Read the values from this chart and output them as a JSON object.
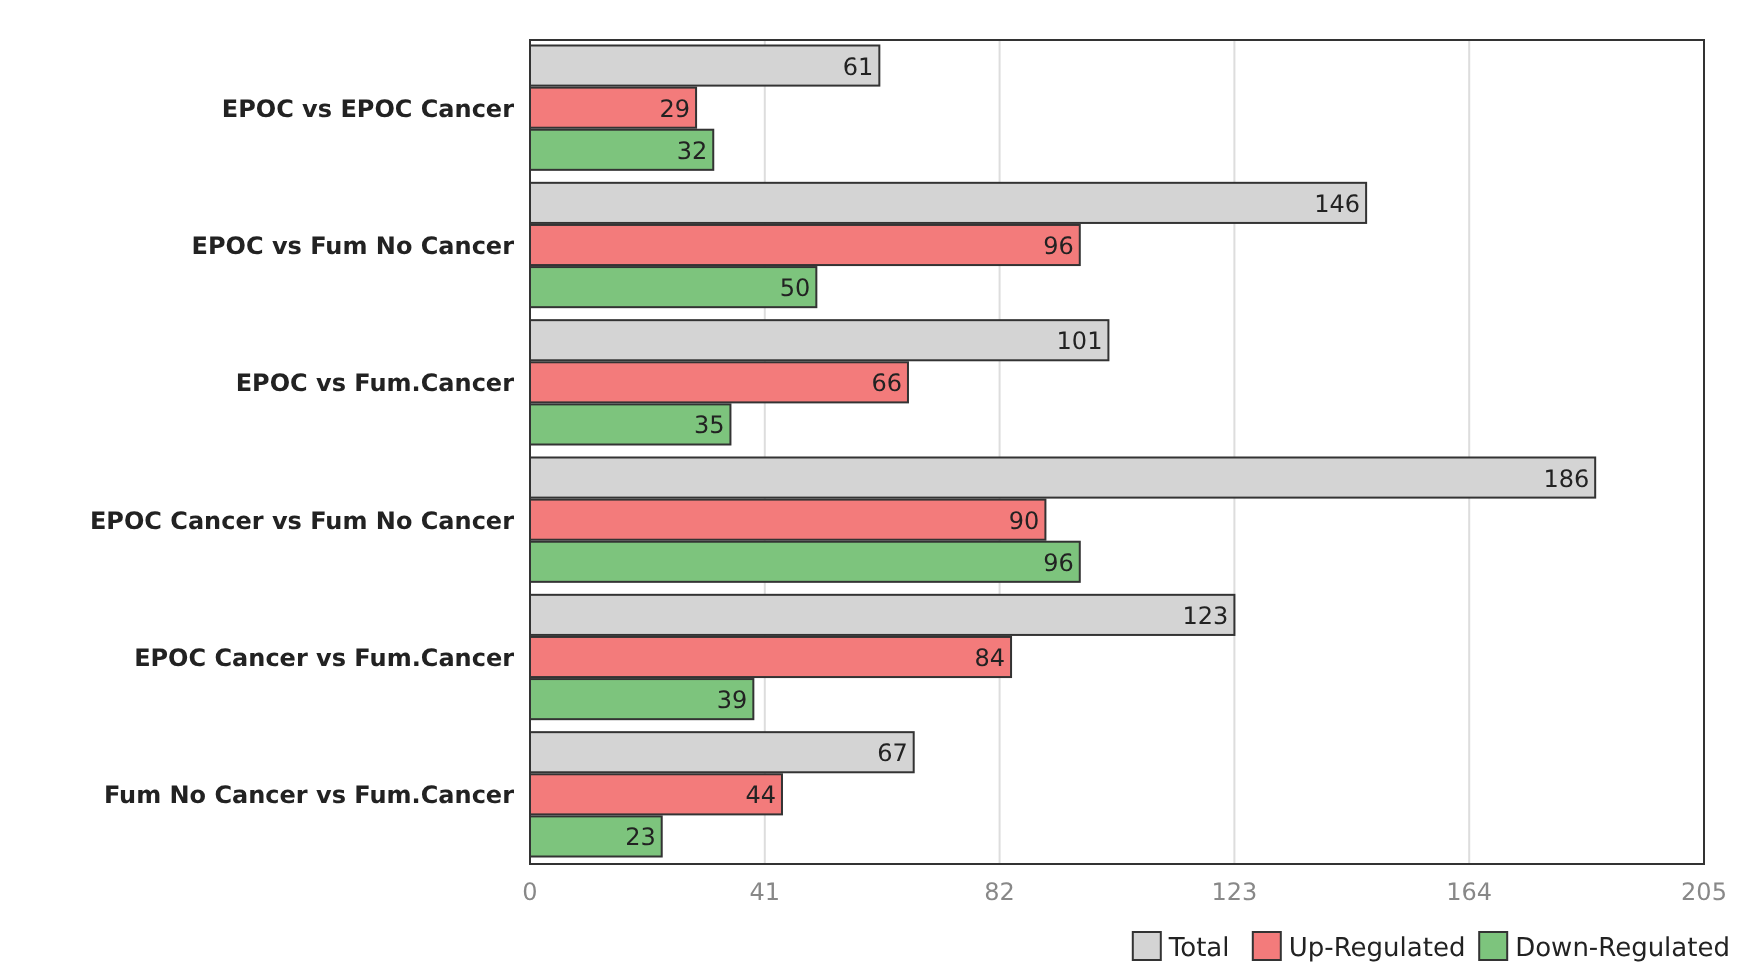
{
  "chart_data": {
    "type": "bar",
    "orientation": "horizontal",
    "categories": [
      "EPOC vs EPOC Cancer",
      "EPOC vs Fum No Cancer",
      "EPOC vs Fum.Cancer",
      "EPOC Cancer vs Fum No Cancer",
      "EPOC Cancer vs Fum.Cancer",
      "Fum No Cancer vs Fum.Cancer"
    ],
    "series": [
      {
        "name": "Total",
        "color": "#d4d4d4",
        "values": [
          61,
          146,
          101,
          186,
          123,
          67
        ]
      },
      {
        "name": "Up-Regulated",
        "color": "#f37b7b",
        "values": [
          29,
          96,
          66,
          90,
          84,
          44
        ]
      },
      {
        "name": "Down-Regulated",
        "color": "#7dc47d",
        "values": [
          32,
          50,
          35,
          96,
          39,
          23
        ]
      }
    ],
    "xlim": [
      0,
      205
    ],
    "xticks": [
      0,
      41,
      82,
      123,
      164,
      205
    ],
    "grid": "x",
    "data_labels": true,
    "legend": "bottom right"
  }
}
